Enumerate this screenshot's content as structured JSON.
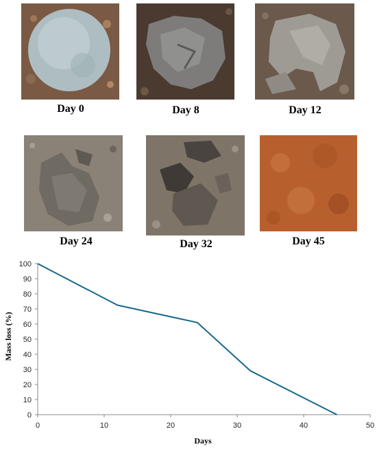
{
  "panels": [
    {
      "caption": "Day 0"
    },
    {
      "caption": "Day 8"
    },
    {
      "caption": "Day 12"
    },
    {
      "caption": "Day 24"
    },
    {
      "caption": "Day 32"
    },
    {
      "caption": "Day 45"
    }
  ],
  "colors": {
    "line": "#17678a",
    "soil_dark": "#5b4738",
    "soil_red": "#b8602d",
    "film": "#b9c6c8"
  },
  "chart_data": {
    "type": "line",
    "xlabel": "Days",
    "ylabel": "Mass loss (%)",
    "xlim": [
      0,
      50
    ],
    "ylim": [
      0,
      100
    ],
    "xticks": [
      0,
      10,
      20,
      30,
      40,
      50
    ],
    "yticks": [
      0,
      10,
      20,
      30,
      40,
      50,
      60,
      70,
      80,
      90,
      100
    ],
    "grid": false,
    "series": [
      {
        "x": [
          0,
          12,
          24,
          32,
          45
        ],
        "y": [
          100,
          72.5,
          61,
          29,
          0
        ]
      }
    ]
  }
}
